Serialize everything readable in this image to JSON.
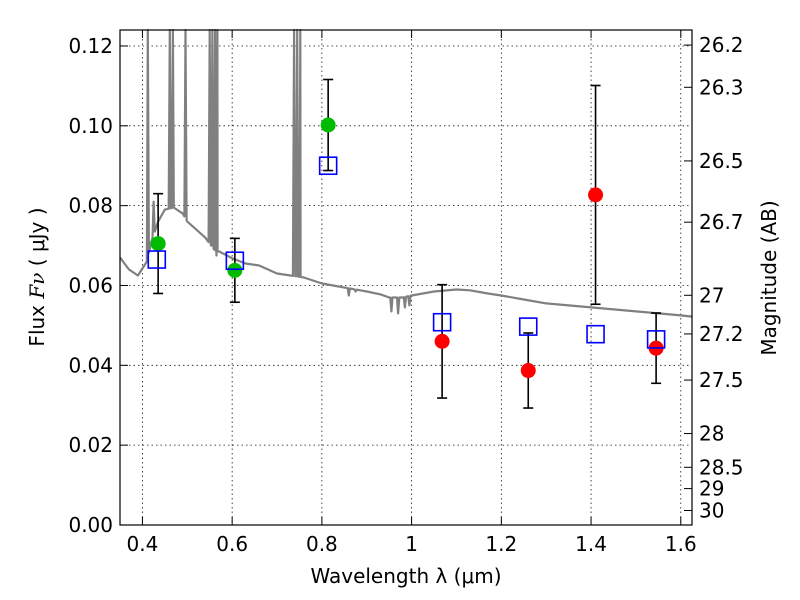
{
  "chart_data": {
    "type": "scatter",
    "xlabel": "Wavelength  λ (μm)",
    "ylabel_text": "Flux ",
    "ylabel_symbol": "Fν",
    "ylabel_unit": " ( μJy )",
    "y2label": "Magnitude (AB)",
    "xlim": [
      0.35,
      1.625
    ],
    "ylim": [
      0.0,
      0.124
    ],
    "x_ticks": [
      0.4,
      0.6,
      0.8,
      1.0,
      1.2,
      1.4,
      1.6
    ],
    "x_tick_labels": [
      "0.4",
      "0.6",
      "0.8",
      "1",
      "1.2",
      "1.4",
      "1.6"
    ],
    "y_ticks": [
      0.0,
      0.02,
      0.04,
      0.06,
      0.08,
      0.1,
      0.12
    ],
    "y_tick_labels": [
      "0.00",
      "0.02",
      "0.04",
      "0.06",
      "0.08",
      "0.10",
      "0.12"
    ],
    "mag_ticks": [
      "26.2",
      "26.3",
      "26.5",
      "26.7",
      "27",
      "27.2",
      "27.5",
      "28",
      "28.5",
      "29",
      "30"
    ],
    "grid": true,
    "colors": {
      "model": "#808080",
      "red": "#ff0000",
      "green": "#00bb00",
      "blue": "#0000ff",
      "errorbar": "#000000"
    },
    "series": [
      {
        "marker": "circle",
        "color": "green",
        "points": [
          {
            "x": 0.435,
            "y": 0.0705,
            "lo": 0.058,
            "hi": 0.083
          },
          {
            "x": 0.606,
            "y": 0.0638,
            "lo": 0.0558,
            "hi": 0.0718
          },
          {
            "x": 0.814,
            "y": 0.1002,
            "lo": 0.0888,
            "hi": 0.1116
          }
        ]
      },
      {
        "marker": "circle",
        "color": "red",
        "points": [
          {
            "x": 1.068,
            "y": 0.046,
            "lo": 0.0318,
            "hi": 0.0602
          },
          {
            "x": 1.26,
            "y": 0.0387,
            "lo": 0.0293,
            "hi": 0.0481
          },
          {
            "x": 1.41,
            "y": 0.0827,
            "lo": 0.0553,
            "hi": 0.1101
          },
          {
            "x": 1.545,
            "y": 0.0443,
            "lo": 0.0355,
            "hi": 0.0531
          }
        ]
      },
      {
        "marker": "square",
        "color": "blue",
        "points": [
          {
            "x": 0.432,
            "y": 0.0665
          },
          {
            "x": 0.606,
            "y": 0.0662
          },
          {
            "x": 0.814,
            "y": 0.09
          },
          {
            "x": 1.068,
            "y": 0.0508
          },
          {
            "x": 1.26,
            "y": 0.0497
          },
          {
            "x": 1.41,
            "y": 0.0478
          },
          {
            "x": 1.545,
            "y": 0.0465
          }
        ]
      }
    ],
    "model_spectrum": {
      "continuum": [
        [
          0.35,
          0.067
        ],
        [
          0.37,
          0.064
        ],
        [
          0.39,
          0.0625
        ],
        [
          0.41,
          0.066
        ],
        [
          0.42,
          0.071
        ],
        [
          0.435,
          0.076
        ],
        [
          0.45,
          0.079
        ],
        [
          0.47,
          0.0795
        ],
        [
          0.49,
          0.078
        ],
        [
          0.5,
          0.076
        ],
        [
          0.52,
          0.074
        ],
        [
          0.54,
          0.072
        ],
        [
          0.56,
          0.069
        ],
        [
          0.58,
          0.068
        ],
        [
          0.6,
          0.0668
        ],
        [
          0.63,
          0.0655
        ],
        [
          0.66,
          0.065
        ],
        [
          0.7,
          0.063
        ],
        [
          0.73,
          0.0625
        ],
        [
          0.76,
          0.062
        ],
        [
          0.8,
          0.0605
        ],
        [
          0.85,
          0.0595
        ],
        [
          0.9,
          0.0585
        ],
        [
          0.93,
          0.0578
        ],
        [
          0.95,
          0.057
        ],
        [
          0.98,
          0.057
        ],
        [
          1.0,
          0.0575
        ],
        [
          1.05,
          0.0585
        ],
        [
          1.1,
          0.059
        ],
        [
          1.13,
          0.0588
        ],
        [
          1.17,
          0.058
        ],
        [
          1.2,
          0.0575
        ],
        [
          1.25,
          0.0565
        ],
        [
          1.3,
          0.0555
        ],
        [
          1.35,
          0.055
        ],
        [
          1.4,
          0.0545
        ],
        [
          1.45,
          0.054
        ],
        [
          1.5,
          0.0535
        ],
        [
          1.55,
          0.053
        ],
        [
          1.6,
          0.0525
        ],
        [
          1.625,
          0.0522
        ]
      ],
      "emission_lines": [
        [
          0.412,
          0.2
        ],
        [
          0.425,
          0.081
        ],
        [
          0.461,
          0.2
        ],
        [
          0.468,
          0.2
        ],
        [
          0.496,
          0.2
        ],
        [
          0.55,
          0.2
        ],
        [
          0.556,
          0.2
        ],
        [
          0.562,
          0.2
        ],
        [
          0.567,
          0.2
        ],
        [
          0.738,
          0.2
        ],
        [
          0.745,
          0.2
        ],
        [
          0.752,
          0.2
        ]
      ],
      "absorption_lines": [
        [
          0.565,
          0.0675
        ],
        [
          0.573,
          0.0685
        ],
        [
          0.75,
          0.063
        ],
        [
          0.86,
          0.0575
        ],
        [
          0.875,
          0.0585
        ],
        [
          0.955,
          0.0535
        ],
        [
          0.97,
          0.053
        ],
        [
          0.985,
          0.0545
        ],
        [
          0.995,
          0.055
        ]
      ]
    }
  }
}
